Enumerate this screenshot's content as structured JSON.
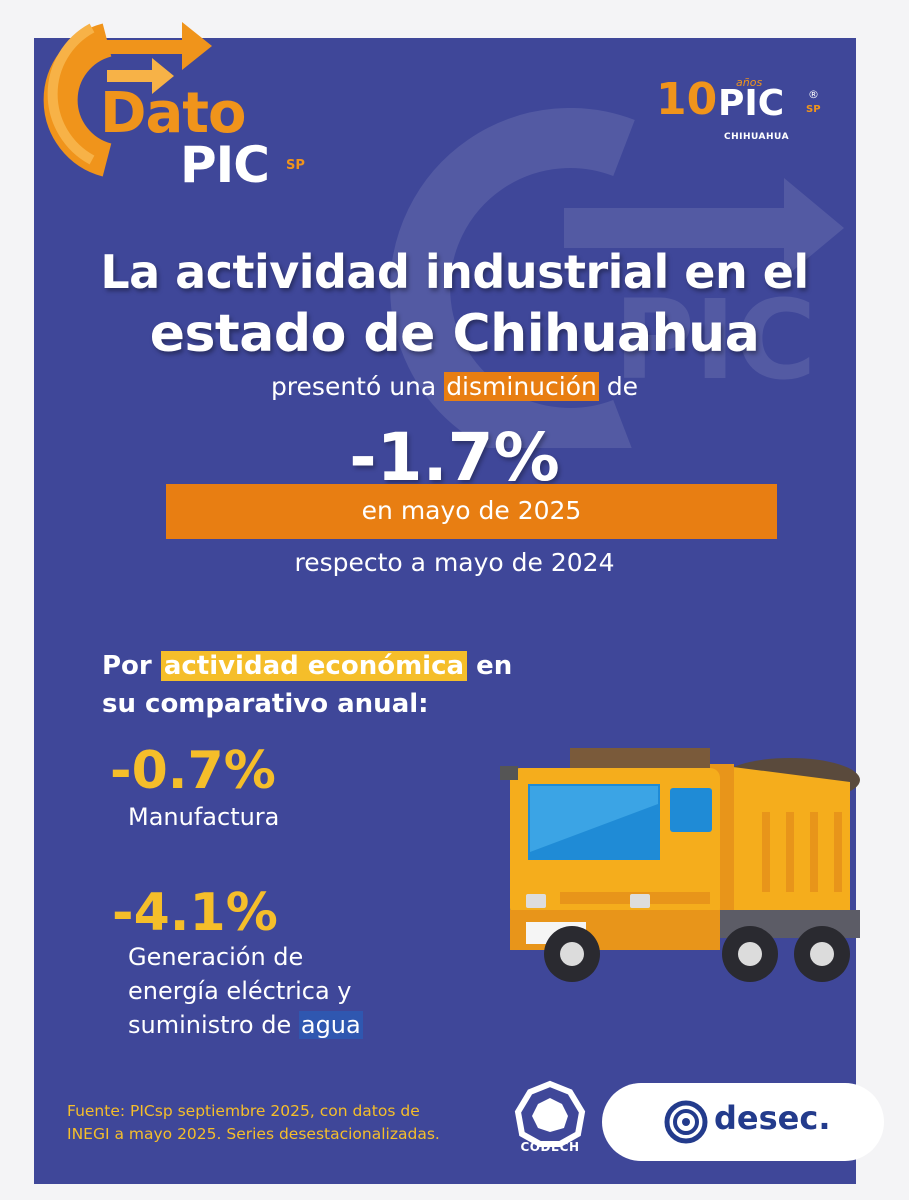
{
  "logo_dato": {
    "word1": "Dato",
    "word2": "PIC",
    "sp": "SP"
  },
  "logo_anos": {
    "ten": "10",
    "label": "años",
    "pic": "PIC",
    "reg": "®",
    "sp": "SP",
    "city": "CHIHUAHUA"
  },
  "headline": {
    "line1": "La actividad industrial en el",
    "line2": "estado de Chihuahua"
  },
  "intro": {
    "before": "presentó una",
    "highlight": "disminución",
    "after": "de"
  },
  "main_value": "-1.7%",
  "period": "en mayo de 2025",
  "comparison": "respecto a mayo de 2024",
  "section": {
    "before": "Por",
    "highlight": "actividad económica",
    "after": "en",
    "line2": "su comparativo anual:"
  },
  "stats": [
    {
      "value": "-0.7%",
      "label": "Manufactura"
    },
    {
      "value": "-4.1%",
      "label_line1": "Generación de",
      "label_line2": "energía eléctrica y",
      "label_line3_before": "suministro de",
      "label_line3_highlight": "agua"
    }
  ],
  "source": {
    "line1": "Fuente: PICsp septiembre 2025, con datos de",
    "line2": "INEGI a mayo 2025. Series desestacionalizadas."
  },
  "partners": {
    "codech": "CODECH",
    "desec": "desec."
  },
  "colors": {
    "background": "#3f4799",
    "orange": "#e87e12",
    "yellow": "#f5be2a",
    "white": "#ffffff",
    "desec_blue": "#233b8c"
  }
}
